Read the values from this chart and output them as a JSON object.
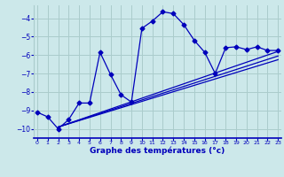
{
  "xlabel": "Graphe des températures (°c)",
  "background_color": "#cce8ea",
  "grid_color": "#aacccc",
  "line_color": "#0000bb",
  "x_ticks": [
    0,
    1,
    2,
    3,
    4,
    5,
    6,
    7,
    8,
    9,
    10,
    11,
    12,
    13,
    14,
    15,
    16,
    17,
    18,
    19,
    20,
    21,
    22,
    23
  ],
  "ylim": [
    -10.5,
    -3.3
  ],
  "xlim": [
    -0.3,
    23.3
  ],
  "yticks": [
    -10,
    -9,
    -8,
    -7,
    -6,
    -5,
    -4
  ],
  "series1_x": [
    0,
    1,
    2,
    3,
    4,
    5,
    6,
    7,
    8,
    9,
    10,
    11,
    12,
    13,
    14,
    15,
    16,
    17,
    18,
    19,
    20,
    21,
    22,
    23
  ],
  "series1_y": [
    -9.1,
    -9.35,
    -10.0,
    -9.5,
    -8.6,
    -8.6,
    -5.85,
    -7.05,
    -8.15,
    -8.55,
    -4.55,
    -4.15,
    -3.65,
    -3.75,
    -4.35,
    -5.2,
    -5.85,
    -7.0,
    -5.6,
    -5.55,
    -5.7,
    -5.55,
    -5.75,
    -5.75
  ],
  "series2_x": [
    2,
    23
  ],
  "series2_y": [
    -9.9,
    -5.8
  ],
  "series3_x": [
    2,
    23
  ],
  "series3_y": [
    -9.9,
    -6.05
  ],
  "series4_x": [
    2,
    23
  ],
  "series4_y": [
    -9.9,
    -6.25
  ]
}
